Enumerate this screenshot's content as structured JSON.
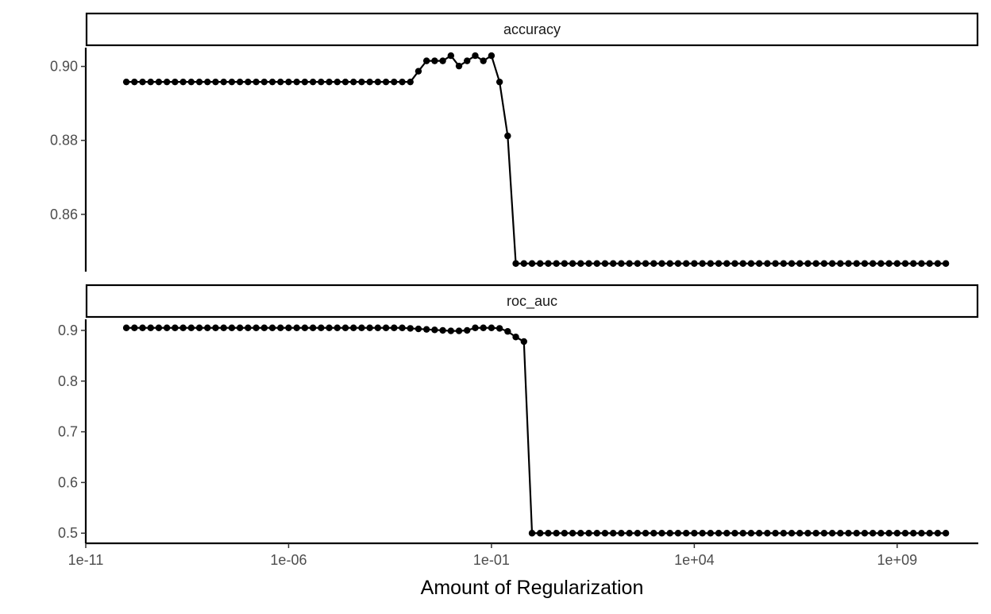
{
  "chart_data": {
    "type": "line",
    "xlabel": "Amount of Regularization",
    "x_scale": "log10",
    "x_ticks": [
      "1e-11",
      "1e-06",
      "1e-01",
      "1e+04",
      "1e+09"
    ],
    "x_tick_values": [
      1e-11,
      1e-06,
      0.1,
      10000.0,
      1000000000.0
    ],
    "xlim": [
      1e-11,
      100000000000.0
    ],
    "panels": [
      {
        "strip": "accuracy",
        "yticks": [
          "0.90",
          "0.88",
          "0.86"
        ],
        "ytick_values": [
          0.9,
          0.88,
          0.86
        ],
        "ylim": [
          0.8445,
          0.9055
        ],
        "x_log10": [
          -10.0,
          -9.8,
          -9.6,
          -9.4,
          -9.2,
          -9.0,
          -8.8,
          -8.6,
          -8.4,
          -8.2,
          -8.0,
          -7.8,
          -7.6,
          -7.4,
          -7.2,
          -7.0,
          -6.8,
          -6.6,
          -6.4,
          -6.2,
          -6.0,
          -5.8,
          -5.6,
          -5.4,
          -5.2,
          -5.0,
          -4.8,
          -4.6,
          -4.4,
          -4.2,
          -4.0,
          -3.8,
          -3.6,
          -3.4,
          -3.2,
          -3.0,
          -2.8,
          -2.6,
          -2.4,
          -2.2,
          -2.0,
          -1.8,
          -1.6,
          -1.4,
          -1.2,
          -1.0,
          -0.8,
          -0.6,
          -0.4,
          -0.2,
          0.0,
          0.2,
          0.4,
          0.6,
          0.8,
          1.0,
          1.2,
          1.4,
          1.6,
          1.8,
          2.0,
          2.2,
          2.4,
          2.6,
          2.8,
          3.0,
          3.2,
          3.4,
          3.6,
          3.8,
          4.0,
          4.2,
          4.4,
          4.6,
          4.8,
          5.0,
          5.2,
          5.4,
          5.6,
          5.8,
          6.0,
          6.2,
          6.4,
          6.6,
          6.8,
          7.0,
          7.2,
          7.4,
          7.6,
          7.8,
          8.0,
          8.2,
          8.4,
          8.6,
          8.8,
          9.0,
          9.2,
          9.4,
          9.6,
          9.8,
          10.0,
          10.2
        ],
        "y": [
          0.8958,
          0.8958,
          0.8958,
          0.8958,
          0.8958,
          0.8958,
          0.8958,
          0.8958,
          0.8958,
          0.8958,
          0.8958,
          0.8958,
          0.8958,
          0.8958,
          0.8958,
          0.8958,
          0.8958,
          0.8958,
          0.8958,
          0.8958,
          0.8958,
          0.8958,
          0.8958,
          0.8958,
          0.8958,
          0.8958,
          0.8958,
          0.8958,
          0.8958,
          0.8958,
          0.8958,
          0.8958,
          0.8958,
          0.8958,
          0.8958,
          0.8958,
          0.8987,
          0.9015,
          0.9015,
          0.9015,
          0.9029,
          0.9001,
          0.9015,
          0.9029,
          0.9015,
          0.9029,
          0.8958,
          0.8812,
          0.8467,
          0.8467,
          0.8467,
          0.8467,
          0.8467,
          0.8467,
          0.8467,
          0.8467,
          0.8467,
          0.8467,
          0.8467,
          0.8467,
          0.8467,
          0.8467,
          0.8467,
          0.8467,
          0.8467,
          0.8467,
          0.8467,
          0.8467,
          0.8467,
          0.8467,
          0.8467,
          0.8467,
          0.8467,
          0.8467,
          0.8467,
          0.8467,
          0.8467,
          0.8467,
          0.8467,
          0.8467,
          0.8467,
          0.8467,
          0.8467,
          0.8467,
          0.8467,
          0.8467,
          0.8467,
          0.8467,
          0.8467,
          0.8467,
          0.8467,
          0.8467,
          0.8467,
          0.8467,
          0.8467,
          0.8467,
          0.8467,
          0.8467,
          0.8467,
          0.8467,
          0.8467,
          0.8467
        ]
      },
      {
        "strip": "roc_auc",
        "yticks": [
          "0.9",
          "0.8",
          "0.7",
          "0.6",
          "0.5"
        ],
        "ytick_values": [
          0.9,
          0.8,
          0.7,
          0.6,
          0.5
        ],
        "ylim": [
          0.48,
          0.925
        ],
        "x_log10": [
          -10.0,
          -9.8,
          -9.6,
          -9.4,
          -9.2,
          -9.0,
          -8.8,
          -8.6,
          -8.4,
          -8.2,
          -8.0,
          -7.8,
          -7.6,
          -7.4,
          -7.2,
          -7.0,
          -6.8,
          -6.6,
          -6.4,
          -6.2,
          -6.0,
          -5.8,
          -5.6,
          -5.4,
          -5.2,
          -5.0,
          -4.8,
          -4.6,
          -4.4,
          -4.2,
          -4.0,
          -3.8,
          -3.6,
          -3.4,
          -3.2,
          -3.0,
          -2.8,
          -2.6,
          -2.4,
          -2.2,
          -2.0,
          -1.8,
          -1.6,
          -1.4,
          -1.2,
          -1.0,
          -0.8,
          -0.6,
          -0.4,
          -0.2,
          0.0,
          0.2,
          0.4,
          0.6,
          0.8,
          1.0,
          1.2,
          1.4,
          1.6,
          1.8,
          2.0,
          2.2,
          2.4,
          2.6,
          2.8,
          3.0,
          3.2,
          3.4,
          3.6,
          3.8,
          4.0,
          4.2,
          4.4,
          4.6,
          4.8,
          5.0,
          5.2,
          5.4,
          5.6,
          5.8,
          6.0,
          6.2,
          6.4,
          6.6,
          6.8,
          7.0,
          7.2,
          7.4,
          7.6,
          7.8,
          8.0,
          8.2,
          8.4,
          8.6,
          8.8,
          9.0,
          9.2,
          9.4,
          9.6,
          9.8,
          10.0,
          10.2
        ],
        "y": [
          0.905,
          0.905,
          0.905,
          0.905,
          0.905,
          0.905,
          0.905,
          0.905,
          0.905,
          0.905,
          0.905,
          0.905,
          0.905,
          0.905,
          0.905,
          0.905,
          0.905,
          0.905,
          0.905,
          0.905,
          0.905,
          0.905,
          0.905,
          0.905,
          0.905,
          0.905,
          0.905,
          0.905,
          0.905,
          0.905,
          0.905,
          0.905,
          0.905,
          0.905,
          0.905,
          0.904,
          0.903,
          0.902,
          0.901,
          0.9,
          0.899,
          0.899,
          0.9,
          0.905,
          0.905,
          0.905,
          0.904,
          0.898,
          0.887,
          0.878,
          0.5,
          0.5,
          0.5,
          0.5,
          0.5,
          0.5,
          0.5,
          0.5,
          0.5,
          0.5,
          0.5,
          0.5,
          0.5,
          0.5,
          0.5,
          0.5,
          0.5,
          0.5,
          0.5,
          0.5,
          0.5,
          0.5,
          0.5,
          0.5,
          0.5,
          0.5,
          0.5,
          0.5,
          0.5,
          0.5,
          0.5,
          0.5,
          0.5,
          0.5,
          0.5,
          0.5,
          0.5,
          0.5,
          0.5,
          0.5,
          0.5,
          0.5,
          0.5,
          0.5,
          0.5,
          0.5,
          0.5,
          0.5,
          0.5,
          0.5,
          0.5,
          0.5
        ]
      }
    ],
    "grid": false,
    "legend": "none",
    "colors": {
      "line": "#000000",
      "point": "#000000",
      "strip_fill": "#ffffff",
      "strip_border": "#000000"
    }
  }
}
